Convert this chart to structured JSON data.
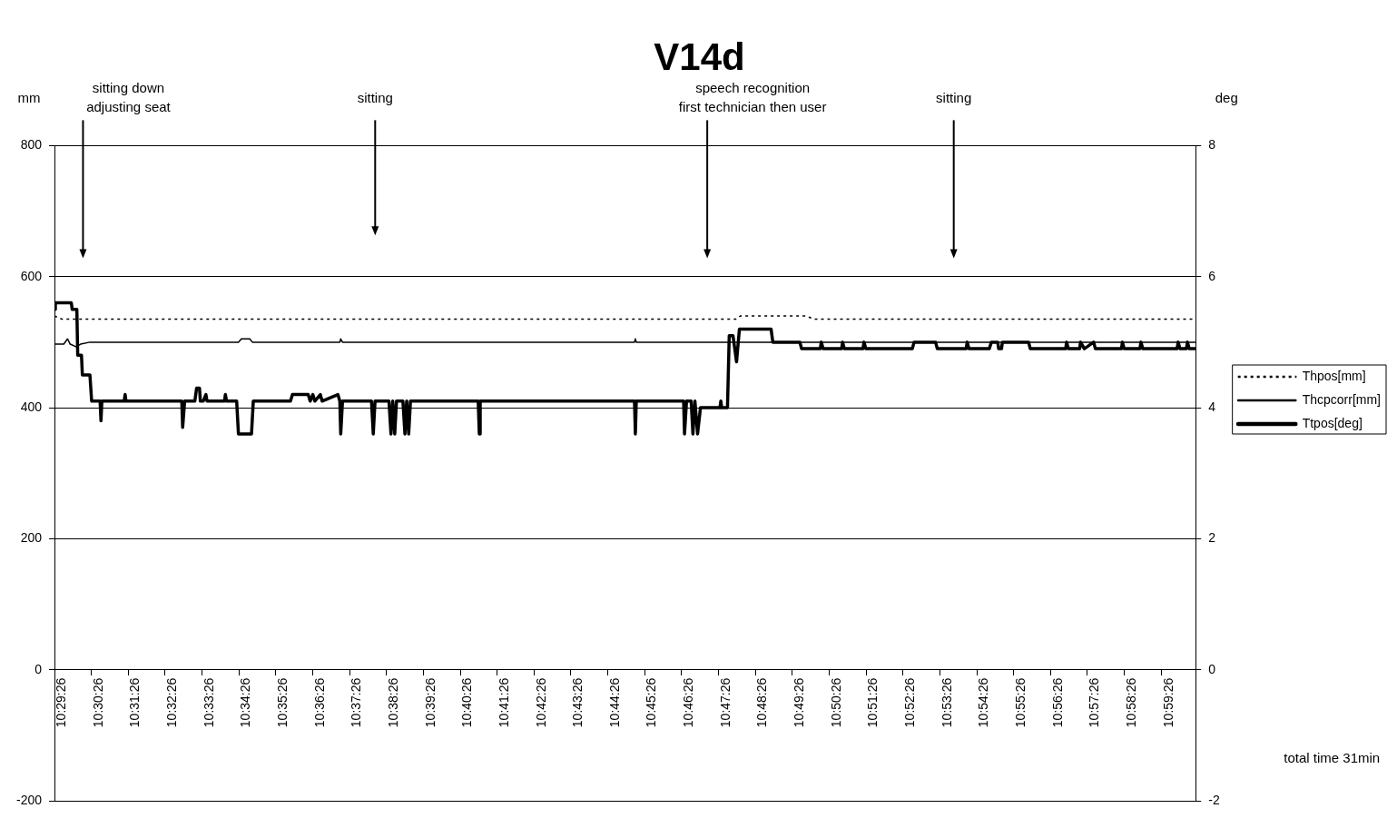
{
  "chart_data": {
    "type": "line",
    "title": "V14d",
    "ylabel": "mm",
    "y2label": "deg",
    "xlim": [
      10.4906,
      11.0061
    ],
    "xticks": [
      {
        "value": 10.4906,
        "label": "10:29:26"
      },
      {
        "value": 10.5072,
        "label": "10:30:26"
      },
      {
        "value": 10.5239,
        "label": "10:31:26"
      },
      {
        "value": 10.5406,
        "label": "10:32:26"
      },
      {
        "value": 10.5572,
        "label": "10:33:26"
      },
      {
        "value": 10.5739,
        "label": "10:34:26"
      },
      {
        "value": 10.5906,
        "label": "10:35:26"
      },
      {
        "value": 10.6072,
        "label": "10:36:26"
      },
      {
        "value": 10.6239,
        "label": "10:37:26"
      },
      {
        "value": 10.6406,
        "label": "10:38:26"
      },
      {
        "value": 10.6572,
        "label": "10:39:26"
      },
      {
        "value": 10.6739,
        "label": "10:40:26"
      },
      {
        "value": 10.6906,
        "label": "10:41:26"
      },
      {
        "value": 10.7072,
        "label": "10:42:26"
      },
      {
        "value": 10.7239,
        "label": "10:43:26"
      },
      {
        "value": 10.7406,
        "label": "10:44:26"
      },
      {
        "value": 10.7572,
        "label": "10:45:26"
      },
      {
        "value": 10.7739,
        "label": "10:46:26"
      },
      {
        "value": 10.7906,
        "label": "10:47:26"
      },
      {
        "value": 10.8072,
        "label": "10:48:26"
      },
      {
        "value": 10.8239,
        "label": "10:49:26"
      },
      {
        "value": 10.8406,
        "label": "10:50:26"
      },
      {
        "value": 10.8572,
        "label": "10:51:26"
      },
      {
        "value": 10.8739,
        "label": "10:52:26"
      },
      {
        "value": 10.8906,
        "label": "10:53:26"
      },
      {
        "value": 10.9072,
        "label": "10:54:26"
      },
      {
        "value": 10.9239,
        "label": "10:55:26"
      },
      {
        "value": 10.9406,
        "label": "10:56:26"
      },
      {
        "value": 10.9572,
        "label": "10:57:26"
      },
      {
        "value": 10.9739,
        "label": "10:58:26"
      },
      {
        "value": 10.9906,
        "label": "10:59:26"
      }
    ],
    "ylim": [
      -200,
      800
    ],
    "yticks": [
      -200,
      0,
      200,
      400,
      600,
      800
    ],
    "y2lim": [
      -2,
      8
    ],
    "y2ticks": [
      -2,
      0,
      2,
      4,
      6,
      8
    ],
    "grid": "y",
    "legend": "right",
    "marker": "none",
    "series": [
      {
        "name": "Thpos[mm]",
        "color": "#000000",
        "line_style": "dotted",
        "x": [
          10.4906,
          10.494,
          10.7983,
          10.8004,
          10.8298,
          10.834,
          11.0061
        ],
        "values": [
          540,
          535,
          535,
          540,
          540,
          535,
          535
        ]
      },
      {
        "name": "Thcpcorr[mm]",
        "color": "#000000",
        "line_style": "solid",
        "x": [
          10.4906,
          10.4948,
          10.4965,
          10.4977,
          10.5003,
          10.5024,
          10.5066,
          10.5737,
          10.575,
          10.5788,
          10.58,
          10.6195,
          10.6199,
          10.6207,
          10.7526,
          10.753,
          10.7534,
          11.0061
        ],
        "values": [
          497,
          497,
          505,
          497,
          493,
          497,
          500,
          500,
          505,
          505,
          500,
          500,
          505,
          500,
          500,
          505,
          500,
          500
        ]
      },
      {
        "name": "Ttpos[deg]",
        "color": "#000000",
        "line_style": "solid",
        "axis": "y2",
        "x": [
          10.4906,
          10.491,
          10.4982,
          10.4986,
          10.5007,
          10.5011,
          10.5028,
          10.5032,
          10.5066,
          10.5074,
          10.5112,
          10.5116,
          10.512,
          10.5221,
          10.5225,
          10.5229,
          10.5481,
          10.5485,
          10.5494,
          10.554,
          10.5548,
          10.5561,
          10.5565,
          10.5578,
          10.559,
          10.5595,
          10.5674,
          10.5678,
          10.5683,
          10.5729,
          10.5737,
          10.5796,
          10.5804,
          10.5972,
          10.5981,
          10.6052,
          10.6061,
          10.6073,
          10.6082,
          10.6107,
          10.6115,
          10.6186,
          10.6195,
          10.6199,
          10.6207,
          10.6338,
          10.6346,
          10.6354,
          10.6417,
          10.6426,
          10.6434,
          10.6443,
          10.6451,
          10.648,
          10.6489,
          10.6497,
          10.6506,
          10.6514,
          10.682,
          10.6825,
          10.6829,
          10.7526,
          10.753,
          10.7534,
          10.7748,
          10.7752,
          10.7761,
          10.7782,
          10.779,
          10.7799,
          10.7811,
          10.7824,
          10.7912,
          10.7916,
          10.792,
          10.7946,
          10.7954,
          10.7971,
          10.7987,
          10.8,
          10.8143,
          10.8151,
          10.8273,
          10.8281,
          10.8365,
          10.837,
          10.8378,
          10.8462,
          10.8466,
          10.8474,
          10.8558,
          10.8563,
          10.8571,
          10.8781,
          10.8789,
          10.8886,
          10.8894,
          10.9024,
          10.9029,
          10.9037,
          10.9129,
          10.9138,
          10.9167,
          10.9171,
          10.9184,
          10.9188,
          10.9306,
          10.9314,
          10.9474,
          10.9478,
          10.9486,
          10.9537,
          10.9541,
          10.9558,
          10.96,
          10.9608,
          10.9726,
          10.973,
          10.9738,
          10.9809,
          10.9814,
          10.9822,
          10.9977,
          10.9982,
          10.999,
          11.0019,
          11.0024,
          11.0032,
          11.0061
        ],
        "values": [
          5.5,
          5.6,
          5.6,
          5.5,
          5.5,
          4.8,
          4.8,
          4.5,
          4.5,
          4.1,
          4.1,
          3.8,
          4.1,
          4.1,
          4.2,
          4.1,
          4.1,
          3.7,
          4.1,
          4.1,
          4.3,
          4.3,
          4.1,
          4.1,
          4.2,
          4.1,
          4.1,
          4.2,
          4.1,
          4.1,
          3.6,
          3.6,
          4.1,
          4.1,
          4.2,
          4.2,
          4.1,
          4.2,
          4.1,
          4.2,
          4.1,
          4.2,
          4.1,
          3.6,
          4.1,
          4.1,
          3.6,
          4.1,
          4.1,
          3.6,
          4.1,
          3.6,
          4.1,
          4.1,
          3.6,
          4.1,
          3.6,
          4.1,
          4.1,
          3.6,
          4.1,
          4.1,
          3.6,
          4.1,
          4.1,
          3.6,
          4.1,
          4.1,
          3.6,
          4.1,
          3.6,
          4.0,
          4.0,
          4.1,
          4.0,
          4.0,
          5.1,
          5.1,
          4.7,
          5.2,
          5.2,
          5.0,
          5.0,
          4.9,
          4.9,
          5.0,
          4.9,
          4.9,
          5.0,
          4.9,
          4.9,
          5.0,
          4.9,
          4.9,
          5.0,
          5.0,
          4.9,
          4.9,
          5.0,
          4.9,
          4.9,
          5.0,
          5.0,
          4.9,
          4.9,
          5.0,
          5.0,
          4.9,
          4.9,
          5.0,
          4.9,
          4.9,
          5.0,
          4.9,
          5.0,
          4.9,
          4.9,
          5.0,
          4.9,
          4.9,
          5.0,
          4.9,
          4.9,
          5.0,
          4.9,
          4.9,
          5.0,
          4.9,
          4.9
        ]
      }
    ],
    "annotations": [
      "sitting down\nadjusting seat",
      "sitting",
      "speech recognition\nfirst technician then user",
      "sitting",
      "total time 31min"
    ]
  }
}
